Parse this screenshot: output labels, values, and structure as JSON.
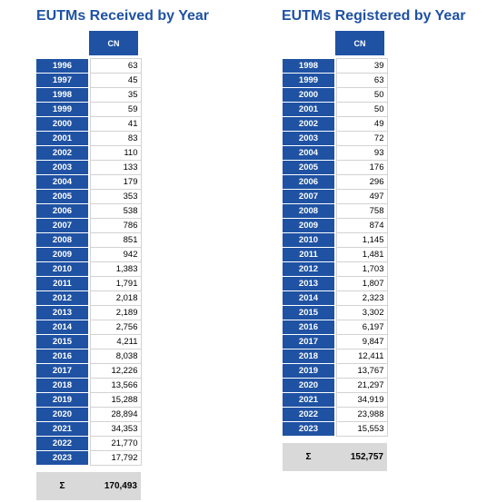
{
  "left": {
    "title": "EUTMs Received by Year",
    "column": "CN",
    "rows": [
      {
        "year": "1996",
        "value": "63"
      },
      {
        "year": "1997",
        "value": "45"
      },
      {
        "year": "1998",
        "value": "35"
      },
      {
        "year": "1999",
        "value": "59"
      },
      {
        "year": "2000",
        "value": "41"
      },
      {
        "year": "2001",
        "value": "83"
      },
      {
        "year": "2002",
        "value": "110"
      },
      {
        "year": "2003",
        "value": "133"
      },
      {
        "year": "2004",
        "value": "179"
      },
      {
        "year": "2005",
        "value": "353"
      },
      {
        "year": "2006",
        "value": "538"
      },
      {
        "year": "2007",
        "value": "786"
      },
      {
        "year": "2008",
        "value": "851"
      },
      {
        "year": "2009",
        "value": "942"
      },
      {
        "year": "2010",
        "value": "1,383"
      },
      {
        "year": "2011",
        "value": "1,791"
      },
      {
        "year": "2012",
        "value": "2,018"
      },
      {
        "year": "2013",
        "value": "2,189"
      },
      {
        "year": "2014",
        "value": "2,756"
      },
      {
        "year": "2015",
        "value": "4,211"
      },
      {
        "year": "2016",
        "value": "8,038"
      },
      {
        "year": "2017",
        "value": "12,226"
      },
      {
        "year": "2018",
        "value": "13,566"
      },
      {
        "year": "2019",
        "value": "15,288"
      },
      {
        "year": "2020",
        "value": "28,894"
      },
      {
        "year": "2021",
        "value": "34,353"
      },
      {
        "year": "2022",
        "value": "21,770"
      },
      {
        "year": "2023",
        "value": "17,792"
      }
    ],
    "total_symbol": "Σ",
    "total": "170,493"
  },
  "right": {
    "title": "EUTMs Registered by Year",
    "column": "CN",
    "rows": [
      {
        "year": "1998",
        "value": "39"
      },
      {
        "year": "1999",
        "value": "63"
      },
      {
        "year": "2000",
        "value": "50"
      },
      {
        "year": "2001",
        "value": "50"
      },
      {
        "year": "2002",
        "value": "49"
      },
      {
        "year": "2003",
        "value": "72"
      },
      {
        "year": "2004",
        "value": "93"
      },
      {
        "year": "2005",
        "value": "176"
      },
      {
        "year": "2006",
        "value": "296"
      },
      {
        "year": "2007",
        "value": "497"
      },
      {
        "year": "2008",
        "value": "758"
      },
      {
        "year": "2009",
        "value": "874"
      },
      {
        "year": "2010",
        "value": "1,145"
      },
      {
        "year": "2011",
        "value": "1,481"
      },
      {
        "year": "2012",
        "value": "1,703"
      },
      {
        "year": "2013",
        "value": "1,807"
      },
      {
        "year": "2014",
        "value": "2,323"
      },
      {
        "year": "2015",
        "value": "3,302"
      },
      {
        "year": "2016",
        "value": "6,197"
      },
      {
        "year": "2017",
        "value": "9,847"
      },
      {
        "year": "2018",
        "value": "12,411"
      },
      {
        "year": "2019",
        "value": "13,767"
      },
      {
        "year": "2020",
        "value": "21,297"
      },
      {
        "year": "2021",
        "value": "34,919"
      },
      {
        "year": "2022",
        "value": "23,988"
      },
      {
        "year": "2023",
        "value": "15,553"
      }
    ],
    "total_symbol": "Σ",
    "total": "152,757"
  }
}
